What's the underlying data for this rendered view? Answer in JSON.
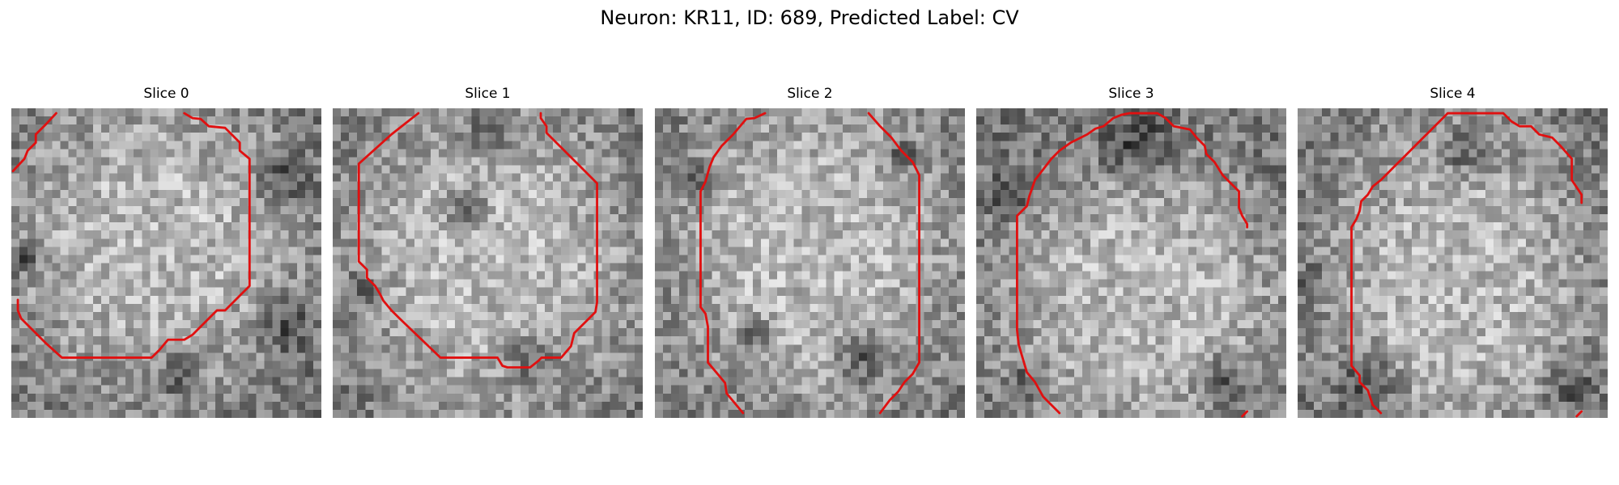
{
  "figure": {
    "title": "Neuron: KR11, ID: 689, Predicted Label: CV"
  },
  "style": {
    "contour_color": "#e01010",
    "background": "#ffffff",
    "colormap": "grayscale"
  },
  "panels": [
    {
      "title": "Slice 0",
      "contours": [
        [
          [
            0.2,
            7.7
          ],
          [
            1.6,
            6.2
          ],
          [
            2,
            5.2
          ],
          [
            3,
            4.2
          ],
          [
            3,
            3.2
          ],
          [
            4.2,
            2
          ],
          [
            5.5,
            0.6
          ]
        ],
        [
          [
            21.2,
            0.6
          ],
          [
            22.2,
            1.2
          ],
          [
            23.2,
            1.3
          ],
          [
            24.2,
            2.2
          ],
          [
            26.2,
            2.4
          ],
          [
            27,
            3.2
          ],
          [
            28,
            4.2
          ],
          [
            28,
            5.2
          ],
          [
            29.2,
            6.2
          ],
          [
            29.2,
            21.8
          ],
          [
            28.2,
            22.8
          ],
          [
            27.2,
            23.8
          ],
          [
            26.2,
            24.8
          ],
          [
            25.2,
            24.8
          ],
          [
            24.2,
            25.8
          ],
          [
            23.2,
            26.8
          ],
          [
            22.2,
            27.8
          ],
          [
            21.2,
            28.4
          ],
          [
            19.2,
            28.4
          ],
          [
            18.2,
            29.6
          ],
          [
            17.2,
            30.6
          ],
          [
            6.2,
            30.6
          ],
          [
            4.2,
            28.8
          ],
          [
            2.2,
            26.8
          ],
          [
            1.2,
            25.8
          ],
          [
            0.8,
            24.8
          ],
          [
            0.8,
            23.5
          ]
        ]
      ]
    },
    {
      "title": "Slice 1",
      "contours": [
        [
          [
            10.5,
            0.6
          ],
          [
            7.2,
            3.2
          ],
          [
            3.2,
            6.8
          ],
          [
            3.2,
            18.8
          ],
          [
            4.2,
            19.8
          ],
          [
            4.2,
            20.8
          ],
          [
            5.2,
            21.8
          ],
          [
            5.8,
            22.8
          ],
          [
            6.2,
            23.6
          ],
          [
            7.2,
            24.8
          ],
          [
            8.2,
            25.8
          ],
          [
            13.2,
            30.6
          ],
          [
            20.2,
            30.6
          ],
          [
            20.8,
            31.6
          ],
          [
            21.4,
            31.8
          ],
          [
            24.2,
            31.8
          ],
          [
            25.2,
            31
          ],
          [
            25.6,
            30.6
          ],
          [
            28,
            30.6
          ],
          [
            29.2,
            29.2
          ],
          [
            29.6,
            27.6
          ],
          [
            31,
            26.2
          ],
          [
            32.2,
            25
          ],
          [
            32.4,
            23.8
          ],
          [
            32.4,
            9.2
          ],
          [
            31.2,
            8
          ],
          [
            30.2,
            7
          ],
          [
            29.2,
            6
          ],
          [
            28.2,
            5
          ],
          [
            27.2,
            4
          ],
          [
            26.2,
            3
          ],
          [
            26.2,
            2.2
          ],
          [
            25.5,
            1.2
          ],
          [
            25.5,
            0.6
          ]
        ]
      ]
    },
    {
      "title": "Slice 2",
      "contours": [
        [
          [
            13.5,
            0.6
          ],
          [
            12.2,
            1.2
          ],
          [
            11.2,
            1.3
          ],
          [
            9.6,
            3.2
          ],
          [
            8.2,
            4.6
          ],
          [
            7.2,
            6
          ],
          [
            6.7,
            7.2
          ],
          [
            6.2,
            9
          ],
          [
            5.6,
            10.2
          ],
          [
            5.6,
            24.4
          ],
          [
            6.2,
            25.2
          ],
          [
            6.5,
            26.8
          ],
          [
            6.5,
            31.2
          ],
          [
            7.6,
            32.5
          ],
          [
            8.6,
            33.7
          ],
          [
            8.8,
            35
          ],
          [
            10.8,
            37.4
          ]
        ],
        [
          [
            26.2,
            0.6
          ],
          [
            27.6,
            2.2
          ],
          [
            29,
            3.6
          ],
          [
            30.2,
            5.2
          ],
          [
            31.6,
            6.6
          ],
          [
            32.4,
            8.2
          ],
          [
            32.4,
            31.2
          ],
          [
            31.6,
            32.6
          ],
          [
            30.6,
            33.6
          ],
          [
            29.8,
            34.8
          ],
          [
            28.8,
            35.8
          ],
          [
            27.6,
            37.4
          ]
        ]
      ]
    },
    {
      "title": "Slice 3",
      "contours": [
        [
          [
            10.2,
            37.4
          ],
          [
            9.2,
            36.4
          ],
          [
            8.2,
            35.4
          ],
          [
            7.2,
            33.6
          ],
          [
            6.2,
            32.4
          ],
          [
            5.2,
            29
          ],
          [
            5,
            27.2
          ],
          [
            5,
            13.2
          ],
          [
            6.2,
            12
          ],
          [
            6.5,
            10.8
          ],
          [
            7.2,
            8.8
          ],
          [
            8.2,
            7.5
          ],
          [
            9.2,
            6.2
          ],
          [
            10.2,
            5.2
          ],
          [
            11.6,
            4.2
          ],
          [
            13.6,
            3.2
          ],
          [
            14.6,
            2.5
          ],
          [
            15.6,
            2.2
          ],
          [
            16.8,
            1.2
          ],
          [
            17.8,
            0.8
          ],
          [
            18.8,
            0.6
          ],
          [
            22.2,
            0.6
          ],
          [
            23.2,
            1.2
          ],
          [
            24.2,
            2.2
          ],
          [
            26.2,
            2.6
          ],
          [
            27,
            3.6
          ],
          [
            28,
            4.6
          ],
          [
            28.2,
            5.6
          ],
          [
            29.2,
            6.6
          ],
          [
            30.2,
            8.2
          ],
          [
            31.2,
            9.2
          ],
          [
            32.2,
            10.2
          ],
          [
            32.2,
            12.2
          ],
          [
            32.6,
            13.2
          ],
          [
            33.2,
            14.2
          ],
          [
            33.2,
            14.6
          ]
        ],
        [
          [
            33.2,
            37.2
          ],
          [
            32.6,
            37.8
          ]
        ]
      ]
    },
    {
      "title": "Slice 4",
      "contours": [
        [
          [
            10.2,
            37.4
          ],
          [
            9.2,
            36.4
          ],
          [
            8.6,
            34.6
          ],
          [
            7.6,
            33.6
          ],
          [
            7.6,
            32.8
          ],
          [
            6.6,
            31.6
          ],
          [
            6.6,
            14.6
          ],
          [
            7.2,
            13.6
          ],
          [
            7.6,
            12.6
          ],
          [
            7.8,
            11.4
          ],
          [
            8.6,
            10.6
          ],
          [
            9.2,
            9.6
          ],
          [
            10.2,
            8.8
          ],
          [
            11.2,
            7.8
          ],
          [
            12.2,
            6.8
          ],
          [
            13.2,
            5.8
          ],
          [
            14.2,
            4.8
          ],
          [
            15.2,
            3.8
          ],
          [
            16.2,
            2.8
          ],
          [
            17.2,
            1.8
          ],
          [
            18.2,
            0.8
          ],
          [
            18.4,
            0.6
          ],
          [
            25.2,
            0.6
          ],
          [
            26.2,
            1.6
          ],
          [
            27.2,
            2.2
          ],
          [
            28.6,
            2.2
          ],
          [
            29.6,
            3.2
          ],
          [
            31.2,
            3.6
          ],
          [
            32.2,
            4.6
          ],
          [
            33.6,
            6.2
          ],
          [
            33.6,
            8.8
          ],
          [
            34.8,
            10.6
          ],
          [
            34.8,
            11.6
          ]
        ],
        [
          [
            34.8,
            37.2
          ],
          [
            34.2,
            37.8
          ]
        ]
      ]
    }
  ]
}
